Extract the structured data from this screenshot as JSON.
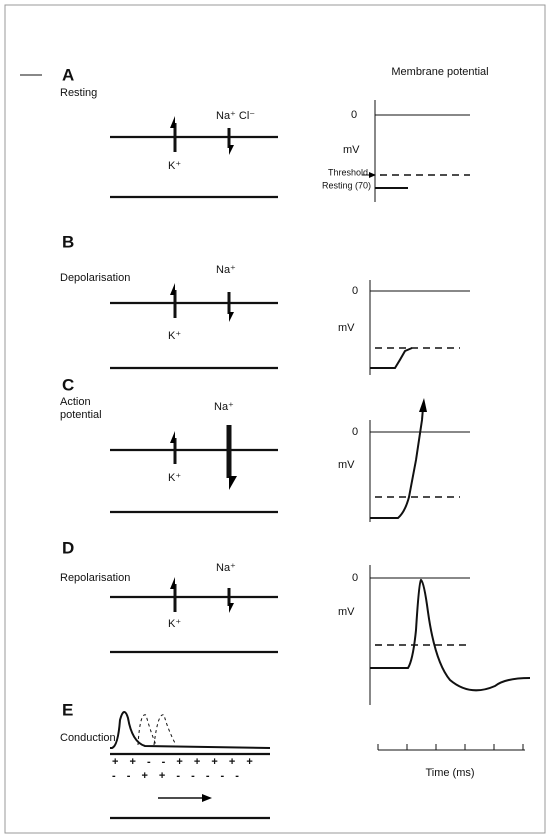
{
  "header": {
    "title": "Membrane potential"
  },
  "panels": [
    {
      "letter": "A",
      "label": [
        "Resting"
      ],
      "ions": [
        "Na⁺ Cl⁻",
        "K⁺"
      ],
      "axis": [
        "0",
        "mV"
      ],
      "markers": [
        "Threshold",
        "Resting (70)"
      ]
    },
    {
      "letter": "B",
      "label": [
        "Depolarisation"
      ],
      "ions": [
        "Na⁺",
        "K⁺"
      ],
      "axis": [
        "0",
        "mV"
      ]
    },
    {
      "letter": "C",
      "label": [
        "Action",
        "potential"
      ],
      "ions": [
        "Na⁺",
        "K⁺"
      ],
      "axis": [
        "0",
        "mV"
      ]
    },
    {
      "letter": "D",
      "label": [
        "Repolarisation"
      ],
      "ions": [
        "Na⁺",
        "K⁺"
      ],
      "axis": [
        "0",
        "mV"
      ]
    },
    {
      "letter": "E",
      "label": [
        "Conduction"
      ],
      "charges": [
        "+ + - - + + + + +",
        "- - + + - - - - -"
      ]
    }
  ],
  "x_axis": "Time (ms)"
}
